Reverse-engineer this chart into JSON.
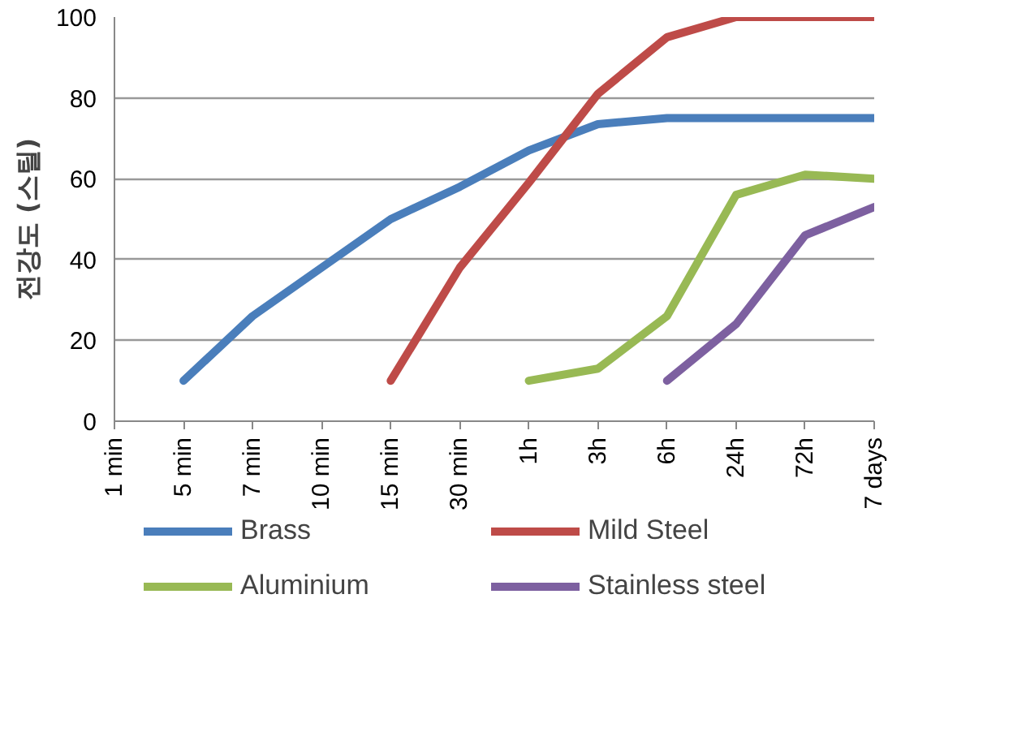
{
  "chart_data": {
    "type": "line",
    "ylabel": "전강도 (스틸)",
    "categories": [
      "1 min",
      "5 min",
      "7 min",
      "10 min",
      "15 min",
      "30 min",
      "1h",
      "3h",
      "6h",
      "24h",
      "72h",
      "7 days"
    ],
    "series": [
      {
        "name": "Brass",
        "color": "#4a7ebb",
        "values": [
          null,
          10,
          26,
          38,
          50,
          58,
          67,
          73.5,
          75,
          75,
          75,
          75
        ]
      },
      {
        "name": "Mild Steel",
        "color": "#be4b48",
        "values": [
          null,
          null,
          null,
          null,
          10,
          38,
          59,
          81,
          95,
          100,
          100,
          100
        ]
      },
      {
        "name": "Aluminium",
        "color": "#98b954",
        "values": [
          null,
          null,
          null,
          null,
          null,
          null,
          10,
          13,
          26,
          56,
          61,
          60
        ]
      },
      {
        "name": "Stainless steel",
        "color": "#7d60a0",
        "values": [
          null,
          null,
          null,
          null,
          null,
          null,
          null,
          null,
          10,
          24,
          46,
          53
        ]
      }
    ],
    "ylim": [
      0,
      100
    ],
    "yticks": [
      0,
      20,
      40,
      60,
      80,
      100
    ],
    "grid": "y",
    "legend": "bottom",
    "marker": "none",
    "line_style": "solid"
  }
}
